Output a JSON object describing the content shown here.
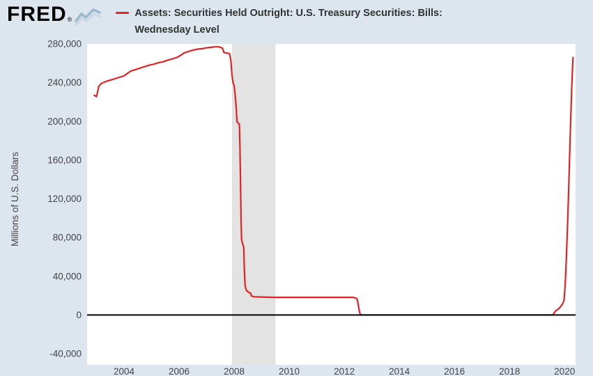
{
  "header": {
    "logo_text": "FRED",
    "registered_mark": "®",
    "legend": {
      "title_line1": "Assets: Securities Held Outright: U.S. Treasury Securities: Bills:",
      "title_line2": "Wednesday Level"
    }
  },
  "colors": {
    "page_bg": "#dde5ef",
    "tick_text": "#444444",
    "title_text": "#333333",
    "zero_line": "#000000"
  },
  "chart_data": {
    "type": "line",
    "title": "Assets: Securities Held Outright: U.S. Treasury Securities: Bills: Wednesday Level",
    "xlabel": "",
    "ylabel": "Millions of U.S. Dollars",
    "legend_position": "top",
    "grid": false,
    "background": "#ffffff",
    "recession_color": "#e3e3e3",
    "zero_line": true,
    "x_range": [
      2002.66,
      2020.4
    ],
    "y_range": [
      -40000,
      280000
    ],
    "x_ticks": [
      {
        "value": 2004,
        "label": "2004"
      },
      {
        "value": 2006,
        "label": "2006"
      },
      {
        "value": 2008,
        "label": "2008"
      },
      {
        "value": 2010,
        "label": "2010"
      },
      {
        "value": 2012,
        "label": "2012"
      },
      {
        "value": 2014,
        "label": "2014"
      },
      {
        "value": 2016,
        "label": "2016"
      },
      {
        "value": 2018,
        "label": "2018"
      },
      {
        "value": 2020,
        "label": "2020"
      }
    ],
    "y_ticks": [
      {
        "value": -40000,
        "label": "-40,000"
      },
      {
        "value": 0,
        "label": "0"
      },
      {
        "value": 40000,
        "label": "40,000"
      },
      {
        "value": 80000,
        "label": "80,000"
      },
      {
        "value": 120000,
        "label": "120,000"
      },
      {
        "value": 160000,
        "label": "160,000"
      },
      {
        "value": 200000,
        "label": "200,000"
      },
      {
        "value": 240000,
        "label": "240,000"
      },
      {
        "value": 280000,
        "label": "280,000"
      }
    ],
    "recessions": [
      [
        2007.92,
        2009.5
      ]
    ],
    "series": [
      {
        "name": "Assets: Securities Held Outright: U.S. Treasury Securities: Bills: Wednesday Level",
        "color": "#e02424",
        "units": "Millions of U.S. Dollars",
        "points": [
          [
            2002.92,
            227000
          ],
          [
            2003.0,
            225500
          ],
          [
            2003.04,
            230000
          ],
          [
            2003.08,
            236000
          ],
          [
            2003.17,
            239000
          ],
          [
            2003.33,
            241000
          ],
          [
            2003.5,
            242500
          ],
          [
            2003.67,
            244000
          ],
          [
            2003.83,
            245500
          ],
          [
            2004.0,
            247000
          ],
          [
            2004.08,
            248500
          ],
          [
            2004.17,
            250500
          ],
          [
            2004.25,
            252000
          ],
          [
            2004.42,
            253500
          ],
          [
            2004.58,
            255000
          ],
          [
            2004.75,
            256500
          ],
          [
            2004.92,
            258000
          ],
          [
            2005.08,
            259000
          ],
          [
            2005.25,
            260500
          ],
          [
            2005.42,
            261500
          ],
          [
            2005.58,
            263000
          ],
          [
            2005.75,
            264500
          ],
          [
            2005.92,
            266000
          ],
          [
            2006.08,
            268500
          ],
          [
            2006.17,
            270500
          ],
          [
            2006.33,
            272000
          ],
          [
            2006.5,
            273500
          ],
          [
            2006.67,
            274500
          ],
          [
            2006.83,
            275000
          ],
          [
            2007.0,
            276000
          ],
          [
            2007.17,
            276500
          ],
          [
            2007.33,
            277000
          ],
          [
            2007.42,
            277000
          ],
          [
            2007.5,
            276500
          ],
          [
            2007.58,
            275500
          ],
          [
            2007.63,
            271000
          ],
          [
            2007.75,
            270500
          ],
          [
            2007.83,
            270000
          ],
          [
            2007.88,
            263000
          ],
          [
            2007.92,
            248000
          ],
          [
            2007.96,
            240000
          ],
          [
            2008.0,
            237000
          ],
          [
            2008.04,
            226000
          ],
          [
            2008.08,
            212000
          ],
          [
            2008.1,
            200000
          ],
          [
            2008.15,
            198000
          ],
          [
            2008.19,
            197000
          ],
          [
            2008.21,
            175000
          ],
          [
            2008.23,
            140000
          ],
          [
            2008.25,
            100000
          ],
          [
            2008.27,
            78000
          ],
          [
            2008.31,
            73000
          ],
          [
            2008.35,
            70000
          ],
          [
            2008.37,
            48000
          ],
          [
            2008.4,
            30000
          ],
          [
            2008.44,
            25500
          ],
          [
            2008.5,
            24000
          ],
          [
            2008.56,
            23000
          ],
          [
            2008.6,
            22500
          ],
          [
            2008.63,
            19500
          ],
          [
            2008.75,
            18800
          ],
          [
            2009.0,
            18500
          ],
          [
            2009.5,
            18200
          ],
          [
            2010.0,
            18200
          ],
          [
            2010.5,
            18200
          ],
          [
            2011.0,
            18200
          ],
          [
            2011.5,
            18200
          ],
          [
            2012.0,
            18200
          ],
          [
            2012.33,
            18200
          ],
          [
            2012.46,
            17000
          ],
          [
            2012.5,
            12000
          ],
          [
            2012.54,
            5000
          ],
          [
            2012.58,
            500
          ],
          [
            2012.63,
            0
          ],
          [
            2013.0,
            0
          ],
          [
            2014.0,
            0
          ],
          [
            2015.0,
            0
          ],
          [
            2016.0,
            0
          ],
          [
            2017.0,
            0
          ],
          [
            2018.0,
            0
          ],
          [
            2019.0,
            0
          ],
          [
            2019.58,
            0
          ],
          [
            2019.63,
            2500
          ],
          [
            2019.69,
            4500
          ],
          [
            2019.77,
            6000
          ],
          [
            2019.85,
            8500
          ],
          [
            2019.92,
            11000
          ],
          [
            2019.98,
            15000
          ],
          [
            2020.02,
            30000
          ],
          [
            2020.06,
            55000
          ],
          [
            2020.1,
            85000
          ],
          [
            2020.14,
            120000
          ],
          [
            2020.18,
            160000
          ],
          [
            2020.22,
            200000
          ],
          [
            2020.26,
            235000
          ],
          [
            2020.29,
            257000
          ],
          [
            2020.31,
            266000
          ]
        ]
      }
    ]
  }
}
